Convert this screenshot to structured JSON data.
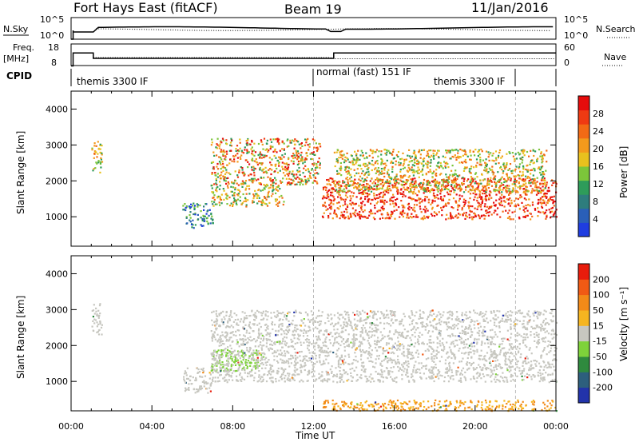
{
  "header": {
    "station": "Fort Hays East (fitACF)",
    "beam": "Beam 19",
    "date": "11/Jan/2016"
  },
  "status_panels": {
    "nsky_label": "N.Sky",
    "nsky_ticks": [
      "10^5",
      "10^0"
    ],
    "nsearch_label": "N.Search",
    "nsearch_ticks": [
      "10^5",
      "10^0"
    ],
    "freq_label_line1": "Freq.",
    "freq_label_line2": "[MHz]",
    "freq_ticks": [
      "18",
      "8"
    ],
    "nave_label": "Nave",
    "nave_ticks": [
      "60",
      "0"
    ],
    "cpid_label": "CPID",
    "cpid_modes": [
      {
        "text": "themis 3300 IF",
        "start_hour": 0,
        "end_hour": 12
      },
      {
        "text": "normal (fast) 151 IF",
        "start_hour": 12,
        "end_hour": 22
      },
      {
        "text": "themis 3300 IF",
        "start_hour": 22,
        "end_hour": 24
      }
    ],
    "freq_steps": [
      {
        "start_hour": 0,
        "end_hour": 0.1,
        "mhz": 8
      },
      {
        "start_hour": 0.1,
        "end_hour": 1.1,
        "mhz": 14
      },
      {
        "start_hour": 1.1,
        "end_hour": 13.0,
        "mhz": 11.5
      },
      {
        "start_hour": 13.0,
        "end_hour": 24,
        "mhz": 14
      }
    ]
  },
  "colorbars": {
    "power": {
      "label": "Power [dB]",
      "ticks": [
        "4",
        "8",
        "12",
        "16",
        "20",
        "24",
        "28"
      ],
      "colors": [
        "#1f3de0",
        "#2a5fb8",
        "#2e7d7d",
        "#2e9c5a",
        "#7cc63a",
        "#e8c11e",
        "#f39a1c",
        "#f26a15",
        "#ef3a12",
        "#e60c0c"
      ]
    },
    "velocity": {
      "label": "Velocity [m s⁻¹]",
      "ticks": [
        "200",
        "100",
        "50",
        "15",
        "-15",
        "-50",
        "-100",
        "-200"
      ],
      "colors": [
        "#2233aa",
        "#2d5f7d",
        "#2f8a3e",
        "#7ed23a",
        "#c7c7c0",
        "#f5b520",
        "#f28a18",
        "#f05a14",
        "#e81c0c"
      ]
    }
  },
  "chart_data": [
    {
      "type": "heatmap",
      "title": "",
      "quantity": "Power",
      "unit": "dB",
      "xlabel": "Time UT",
      "ylabel": "Slant Range [km]",
      "xlim_hours": [
        0,
        24
      ],
      "ylim_km": [
        180,
        4500
      ],
      "x_ticks": [
        "00:00",
        "04:00",
        "08:00",
        "12:00",
        "16:00",
        "20:00",
        "00:00"
      ],
      "y_ticks": [
        "1000",
        "2000",
        "3000",
        "4000"
      ],
      "regions": [
        {
          "t0": 1.0,
          "t1": 1.5,
          "r0": 2250,
          "r1": 3200,
          "level": "mid"
        },
        {
          "t0": 5.5,
          "t1": 7.0,
          "r0": 700,
          "r1": 1400,
          "level": "low"
        },
        {
          "t0": 6.9,
          "t1": 10.5,
          "r0": 1300,
          "r1": 1900,
          "level": "mid"
        },
        {
          "t0": 6.9,
          "t1": 12.3,
          "r0": 1900,
          "r1": 3200,
          "level": "mid-high"
        },
        {
          "t0": 12.4,
          "t1": 24.0,
          "r0": 950,
          "r1": 2100,
          "level": "high"
        },
        {
          "t0": 13.0,
          "t1": 23.5,
          "r0": 1700,
          "r1": 2900,
          "level": "mid"
        }
      ]
    },
    {
      "type": "heatmap",
      "title": "",
      "quantity": "Velocity",
      "unit": "m s^-1",
      "xlabel": "Time UT",
      "ylabel": "Slant Range [km]",
      "xlim_hours": [
        0,
        24
      ],
      "ylim_km": [
        180,
        4500
      ],
      "x_ticks": [
        "00:00",
        "04:00",
        "08:00",
        "12:00",
        "16:00",
        "20:00",
        "00:00"
      ],
      "y_ticks": [
        "1000",
        "2000",
        "3000",
        "4000"
      ],
      "regions": [
        {
          "t0": 1.0,
          "t1": 1.5,
          "r0": 2250,
          "r1": 3200,
          "level": "ground"
        },
        {
          "t0": 5.5,
          "t1": 7.0,
          "r0": 700,
          "r1": 1400,
          "level": "ground"
        },
        {
          "t0": 6.9,
          "t1": 9.5,
          "r0": 1300,
          "r1": 1900,
          "level": "green"
        },
        {
          "t0": 6.9,
          "t1": 24.0,
          "r0": 1000,
          "r1": 3000,
          "level": "ground"
        },
        {
          "t0": 12.4,
          "t1": 24.0,
          "r0": 200,
          "r1": 500,
          "level": "orange"
        }
      ]
    }
  ]
}
